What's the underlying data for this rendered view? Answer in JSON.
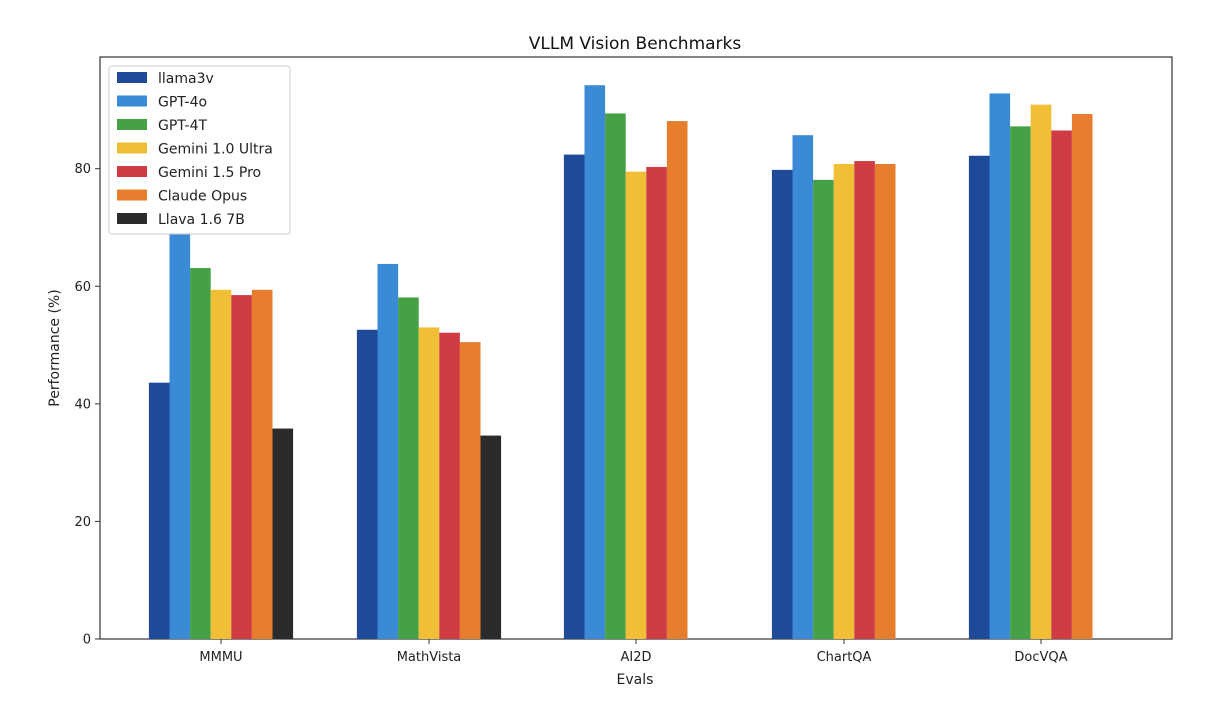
{
  "chart_data": {
    "type": "bar",
    "title": "VLLM Vision Benchmarks",
    "xlabel": "Evals",
    "ylabel": "Performance (%)",
    "ylim": [
      0,
      99
    ],
    "yticks": [
      0,
      20,
      40,
      60,
      80
    ],
    "grid": false,
    "legend_position": "top-left",
    "categories": [
      "MMMU",
      "MathVista",
      "AI2D",
      "ChartQA",
      "DocVQA"
    ],
    "series": [
      {
        "name": "llama3v",
        "color": "#1f4a99",
        "values": [
          43.6,
          52.6,
          82.4,
          79.8,
          82.2
        ]
      },
      {
        "name": "GPT-4o",
        "color": "#3a8ad6",
        "values": [
          69.1,
          63.8,
          94.2,
          85.7,
          92.8
        ]
      },
      {
        "name": "GPT-4T",
        "color": "#45a046",
        "values": [
          63.1,
          58.1,
          89.4,
          78.1,
          87.2
        ]
      },
      {
        "name": "Gemini 1.0 Ultra",
        "color": "#f0bf35",
        "values": [
          59.4,
          53.0,
          79.5,
          80.8,
          90.9
        ]
      },
      {
        "name": "Gemini 1.5 Pro",
        "color": "#cf3c44",
        "values": [
          58.5,
          52.1,
          80.3,
          81.3,
          86.5
        ]
      },
      {
        "name": "Claude Opus",
        "color": "#e67e2e",
        "values": [
          59.4,
          50.5,
          88.1,
          80.8,
          89.3
        ]
      },
      {
        "name": "Llava 1.6 7B",
        "color": "#2b2b2b",
        "values": [
          35.8,
          34.6,
          null,
          null,
          null
        ]
      }
    ]
  }
}
